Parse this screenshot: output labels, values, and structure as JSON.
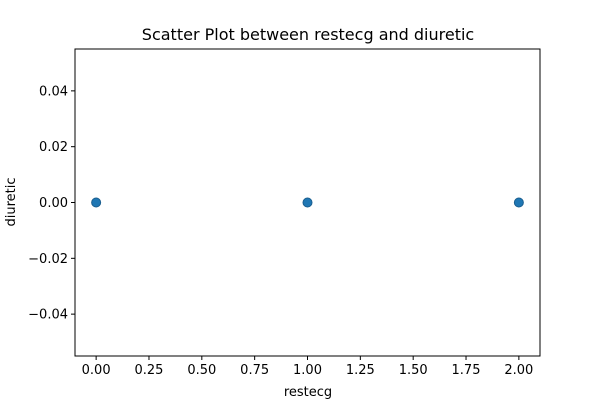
{
  "chart_data": {
    "type": "scatter",
    "title": "Scatter Plot between restecg and diuretic",
    "xlabel": "restecg",
    "ylabel": "diuretic",
    "x": [
      0.0,
      1.0,
      2.0
    ],
    "y": [
      0.0,
      0.0,
      0.0
    ],
    "xlim": [
      -0.1,
      2.1
    ],
    "ylim": [
      -0.055,
      0.055
    ],
    "xticks": [
      0.0,
      0.25,
      0.5,
      0.75,
      1.0,
      1.25,
      1.5,
      1.75,
      2.0
    ],
    "xtick_labels": [
      "0.00",
      "0.25",
      "0.50",
      "0.75",
      "1.00",
      "1.25",
      "1.50",
      "1.75",
      "2.00"
    ],
    "yticks": [
      -0.04,
      -0.02,
      0.0,
      0.02,
      0.04
    ],
    "ytick_labels": [
      "−0.04",
      "−0.02",
      "0.00",
      "0.02",
      "0.04"
    ],
    "grid": false,
    "marker_color": "#1f77b4",
    "marker_edge_color": "#1a5e8f"
  }
}
